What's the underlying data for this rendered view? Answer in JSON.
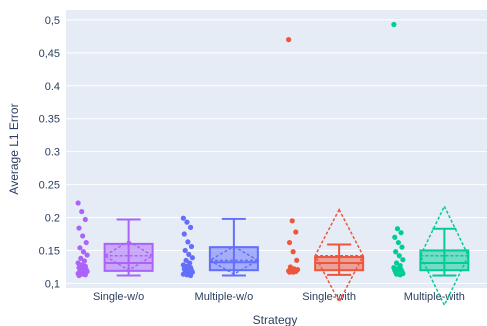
{
  "chart_data": {
    "type": "box",
    "title": "",
    "xlabel": "Strategy",
    "ylabel": "Average L1 Error",
    "ylim": [
      0.093,
      0.515
    ],
    "yticks": [
      0.1,
      0.15,
      0.2,
      0.25,
      0.3,
      0.35,
      0.4,
      0.45,
      0.5
    ],
    "ytick_labels": [
      "0,1",
      "0.15",
      "0.2",
      "0.25",
      "0.3",
      "0.35",
      "0.4",
      "0,45",
      "0,5"
    ],
    "grid": true,
    "legend": false,
    "box_mean": "sd",
    "categories": [
      "Single-w/o",
      "Multiple-w/o",
      "Single-with",
      "Multiple-with"
    ],
    "series": [
      {
        "category": "Single-w/o",
        "color": "#ab63fa",
        "q1": 0.119,
        "median": 0.131,
        "q3": 0.16,
        "lower_fence": 0.112,
        "upper_fence": 0.197,
        "mean": 0.142,
        "sd": 0.022,
        "points": [
          0.222,
          0.209,
          0.197,
          0.184,
          0.172,
          0.162,
          0.154,
          0.148,
          0.143,
          0.138,
          0.134,
          0.131,
          0.128,
          0.126,
          0.124,
          0.122,
          0.121,
          0.12,
          0.119,
          0.118,
          0.117,
          0.116,
          0.115,
          0.114,
          0.113,
          0.112
        ]
      },
      {
        "category": "Multiple-w/o",
        "color": "#636efa",
        "q1": 0.12,
        "median": 0.132,
        "q3": 0.155,
        "lower_fence": 0.112,
        "upper_fence": 0.198,
        "mean": 0.135,
        "sd": 0.021,
        "points": [
          0.199,
          0.193,
          0.185,
          0.175,
          0.163,
          0.156,
          0.15,
          0.144,
          0.139,
          0.135,
          0.131,
          0.128,
          0.126,
          0.124,
          0.122,
          0.121,
          0.12,
          0.119,
          0.118,
          0.117,
          0.116,
          0.115,
          0.114,
          0.113,
          0.112
        ]
      },
      {
        "category": "Single-with",
        "color": "#ef553b",
        "q1": 0.12,
        "median": 0.131,
        "q3": 0.14,
        "lower_fence": 0.113,
        "upper_fence": 0.159,
        "mean": 0.142,
        "sd": 0.07,
        "points": [
          0.47,
          0.195,
          0.178,
          0.162,
          0.148,
          0.135,
          0.125,
          0.122,
          0.121,
          0.12,
          0.119,
          0.119,
          0.118,
          0.118,
          0.117,
          0.117
        ]
      },
      {
        "category": "Multiple-with",
        "color": "#00cc96",
        "q1": 0.12,
        "median": 0.131,
        "q3": 0.15,
        "lower_fence": 0.112,
        "upper_fence": 0.183,
        "mean": 0.142,
        "sd": 0.075,
        "points": [
          0.493,
          0.183,
          0.177,
          0.17,
          0.162,
          0.155,
          0.148,
          0.142,
          0.136,
          0.131,
          0.127,
          0.124,
          0.122,
          0.121,
          0.12,
          0.119,
          0.118,
          0.117,
          0.116,
          0.115,
          0.114,
          0.113
        ]
      }
    ]
  }
}
